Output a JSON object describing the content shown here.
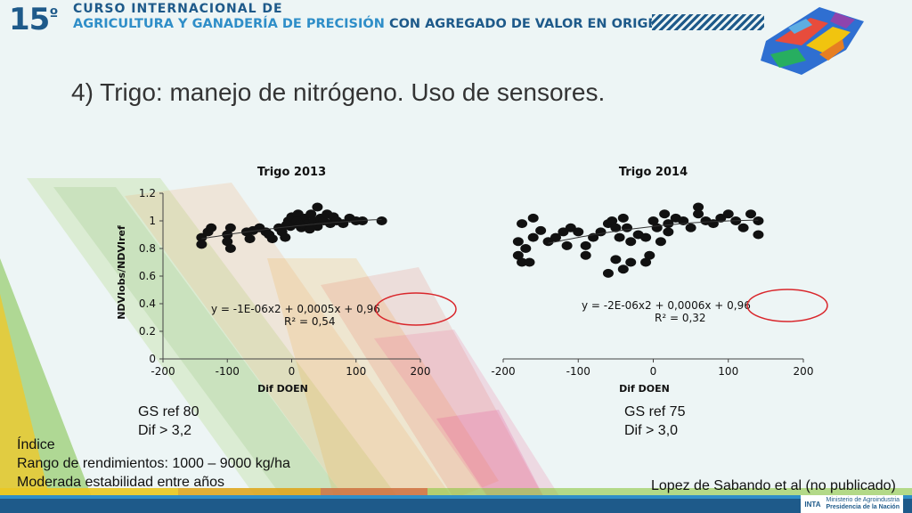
{
  "header": {
    "number": "15",
    "ordinal": "º",
    "line1": "CURSO INTERNACIONAL DE",
    "line2_main": "AGRICULTURA Y GANADERÍA DE PRECISIÓN",
    "line2_tail": "CON AGREGADO DE VALOR EN ORIGEN"
  },
  "slide_title": "4) Trigo: manejo de nitrógeno. Uso de sensores.",
  "chart_data": [
    {
      "type": "scatter",
      "title": "Trigo 2013",
      "xlabel": "Dif  DOEN",
      "ylabel": "NDVIobs/NDVIref",
      "xlim": [
        -200,
        200
      ],
      "ylim": [
        0,
        1.2
      ],
      "xticks": [
        "-200",
        "-100",
        "0",
        "100",
        "200"
      ],
      "yticks": [
        "0",
        "0.2",
        "0.4",
        "0.6",
        "0.8",
        "1",
        "1.2"
      ],
      "trend": {
        "a": -1e-06,
        "b": 0.0005,
        "c": 0.96
      },
      "equation": "y = -1E-06x2 + 0,0005x + 0,96",
      "r2": "R² = 0,54",
      "points": [
        [
          -140,
          0.88
        ],
        [
          -140,
          0.83
        ],
        [
          -130,
          0.92
        ],
        [
          -125,
          0.95
        ],
        [
          -100,
          0.9
        ],
        [
          -100,
          0.85
        ],
        [
          -95,
          0.8
        ],
        [
          -95,
          0.95
        ],
        [
          -70,
          0.92
        ],
        [
          -65,
          0.87
        ],
        [
          -60,
          0.93
        ],
        [
          -50,
          0.95
        ],
        [
          -40,
          0.92
        ],
        [
          -35,
          0.9
        ],
        [
          -30,
          0.87
        ],
        [
          -20,
          0.95
        ],
        [
          -15,
          0.92
        ],
        [
          -10,
          0.88
        ],
        [
          -5,
          1.0
        ],
        [
          0,
          1.03
        ],
        [
          5,
          0.98
        ],
        [
          10,
          1.05
        ],
        [
          15,
          0.95
        ],
        [
          20,
          1.02
        ],
        [
          25,
          0.98
        ],
        [
          30,
          1.05
        ],
        [
          35,
          1.0
        ],
        [
          40,
          0.96
        ],
        [
          45,
          1.02
        ],
        [
          50,
          1.0
        ],
        [
          55,
          1.05
        ],
        [
          60,
          0.98
        ],
        [
          65,
          1.03
        ],
        [
          70,
          1.0
        ],
        [
          -2,
          0.96
        ],
        [
          8,
          1.0
        ],
        [
          12,
          0.97
        ],
        [
          40,
          1.1
        ],
        [
          80,
          0.98
        ],
        [
          90,
          1.02
        ],
        [
          100,
          1.0
        ],
        [
          110,
          1.0
        ],
        [
          140,
          1.0
        ],
        [
          28,
          0.94
        ],
        [
          -8,
          0.97
        ]
      ]
    },
    {
      "type": "scatter",
      "title": "Trigo 2014",
      "xlabel": "Dif  DOEN",
      "ylabel": "",
      "xlim": [
        -200,
        200
      ],
      "ylim": [
        0,
        1.2
      ],
      "xticks": [
        "-200",
        "-100",
        "0",
        "100",
        "200"
      ],
      "yticks": [],
      "trend": {
        "a": -2e-06,
        "b": 0.0006,
        "c": 0.96
      },
      "equation": "y = -2E-06x2 + 0,0006x + 0,96",
      "r2": "R² = 0,32",
      "points": [
        [
          -180,
          0.85
        ],
        [
          -180,
          0.75
        ],
        [
          -175,
          0.7
        ],
        [
          -170,
          0.8
        ],
        [
          -165,
          0.7
        ],
        [
          -160,
          0.88
        ],
        [
          -175,
          0.98
        ],
        [
          -150,
          0.93
        ],
        [
          -140,
          0.85
        ],
        [
          -130,
          0.88
        ],
        [
          -120,
          0.92
        ],
        [
          -115,
          0.82
        ],
        [
          -110,
          0.95
        ],
        [
          -100,
          0.92
        ],
        [
          -90,
          0.75
        ],
        [
          -80,
          0.88
        ],
        [
          -70,
          0.92
        ],
        [
          -60,
          0.98
        ],
        [
          -55,
          1.0
        ],
        [
          -50,
          0.95
        ],
        [
          -45,
          0.88
        ],
        [
          -40,
          1.02
        ],
        [
          -35,
          0.95
        ],
        [
          -30,
          0.85
        ],
        [
          -20,
          0.9
        ],
        [
          -10,
          0.88
        ],
        [
          -5,
          0.75
        ],
        [
          0,
          1.0
        ],
        [
          5,
          0.95
        ],
        [
          10,
          0.85
        ],
        [
          15,
          1.05
        ],
        [
          20,
          0.98
        ],
        [
          30,
          1.02
        ],
        [
          40,
          1.0
        ],
        [
          50,
          0.95
        ],
        [
          60,
          1.1
        ],
        [
          60,
          1.05
        ],
        [
          70,
          1.0
        ],
        [
          80,
          0.98
        ],
        [
          90,
          1.02
        ],
        [
          100,
          1.05
        ],
        [
          110,
          1.0
        ],
        [
          120,
          0.95
        ],
        [
          130,
          1.05
        ],
        [
          140,
          1.0
        ],
        [
          140,
          0.9
        ],
        [
          -60,
          0.62
        ],
        [
          -40,
          0.65
        ],
        [
          -50,
          0.72
        ],
        [
          -30,
          0.7
        ],
        [
          -10,
          0.7
        ],
        [
          20,
          0.92
        ],
        [
          -90,
          0.82
        ],
        [
          -160,
          1.02
        ]
      ]
    }
  ],
  "notes": {
    "left_gs": "GS ref 80",
    "left_dif": "Dif > 3,2",
    "right_gs": "GS ref 75",
    "right_dif": "Dif > 3,0",
    "indice": "Índice",
    "rango": "Rango de rendimientos: 1000 – 9000 kg/ha",
    "moderada": "Moderada estabilidad entre años",
    "citation": "Lopez de Sabando et al (no publicado)"
  },
  "footer": {
    "logo_inta": "INTA",
    "logo_min_line1": "Ministerio de Agroindustria",
    "logo_min_line2": "Presidencia de la Nación"
  },
  "colors": {
    "brand_dark": "#1e5a8a",
    "brand_light": "#2f8ec8",
    "circle": "#d9262b",
    "points": "#111111"
  }
}
